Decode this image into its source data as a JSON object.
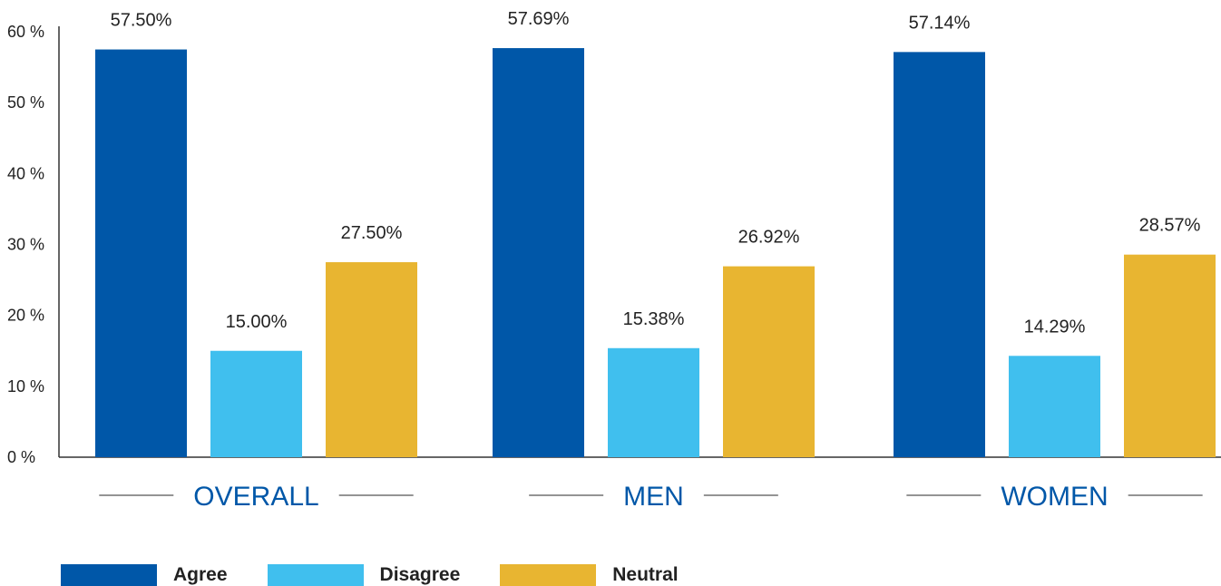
{
  "chart_data": {
    "type": "bar",
    "categories": [
      "OVERALL",
      "MEN",
      "WOMEN"
    ],
    "series": [
      {
        "name": "Agree",
        "color": "#0057a8",
        "values": [
          57.5,
          57.69,
          57.14
        ],
        "labels": [
          "57.50%",
          "57.69%",
          "57.14%"
        ]
      },
      {
        "name": "Disagree",
        "color": "#40bfee",
        "values": [
          15.0,
          15.38,
          14.29
        ],
        "labels": [
          "15.00%",
          "15.38%",
          "14.29%"
        ]
      },
      {
        "name": "Neutral",
        "color": "#e8b531",
        "values": [
          27.5,
          26.92,
          28.57
        ],
        "labels": [
          "27.50%",
          "26.92%",
          "28.57%"
        ]
      }
    ],
    "ylim": [
      0,
      60
    ],
    "yticks": [
      0,
      10,
      20,
      30,
      40,
      50,
      60
    ],
    "ytick_labels": [
      "0 %",
      "10 %",
      "20 %",
      "30 %",
      "40 %",
      "50 %",
      "60 %"
    ],
    "legend_position": "bottom-left",
    "grid": false
  },
  "legend": {
    "agree": "Agree",
    "disagree": "Disagree",
    "neutral": "Neutral"
  }
}
